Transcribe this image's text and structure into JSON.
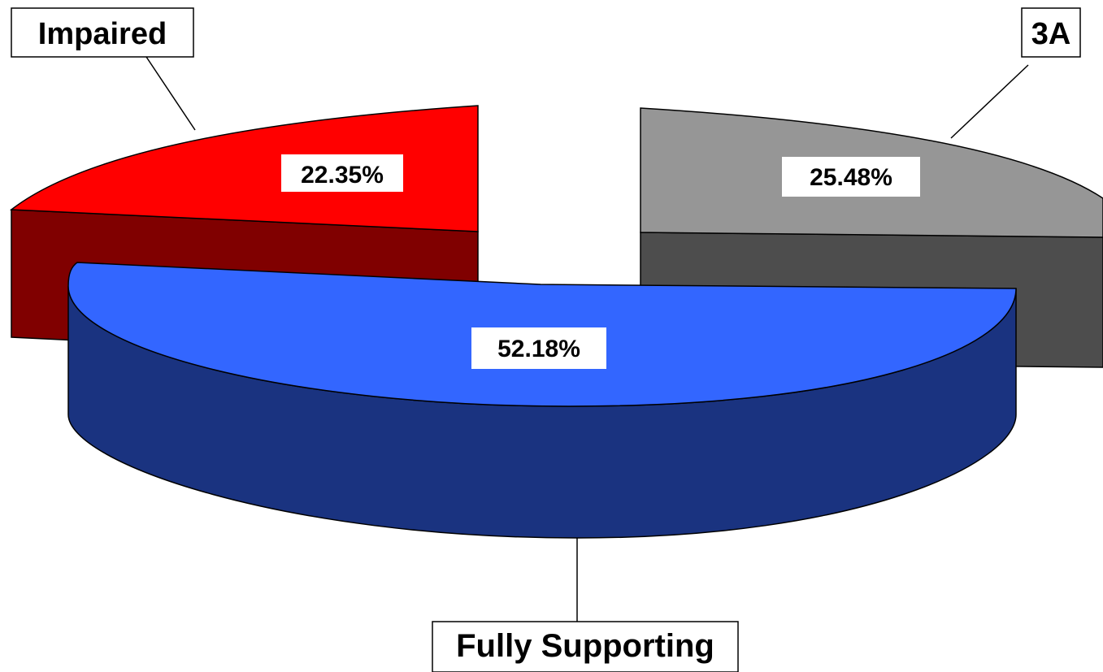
{
  "chart_data": {
    "type": "pie",
    "variant": "3d-exploded",
    "slices": [
      {
        "name": "Impaired",
        "value": 22.35,
        "label": "22.35%",
        "color": "#ff0000",
        "side_color": "#800000"
      },
      {
        "name": "3A",
        "value": 25.48,
        "label": "25.48%",
        "color": "#969696",
        "side_color": "#4d4d4d"
      },
      {
        "name": "Fully Supporting",
        "value": 52.18,
        "label": "52.18%",
        "color": "#3366ff",
        "side_color": "#1a3380"
      }
    ],
    "legend": "none",
    "grid": false
  }
}
